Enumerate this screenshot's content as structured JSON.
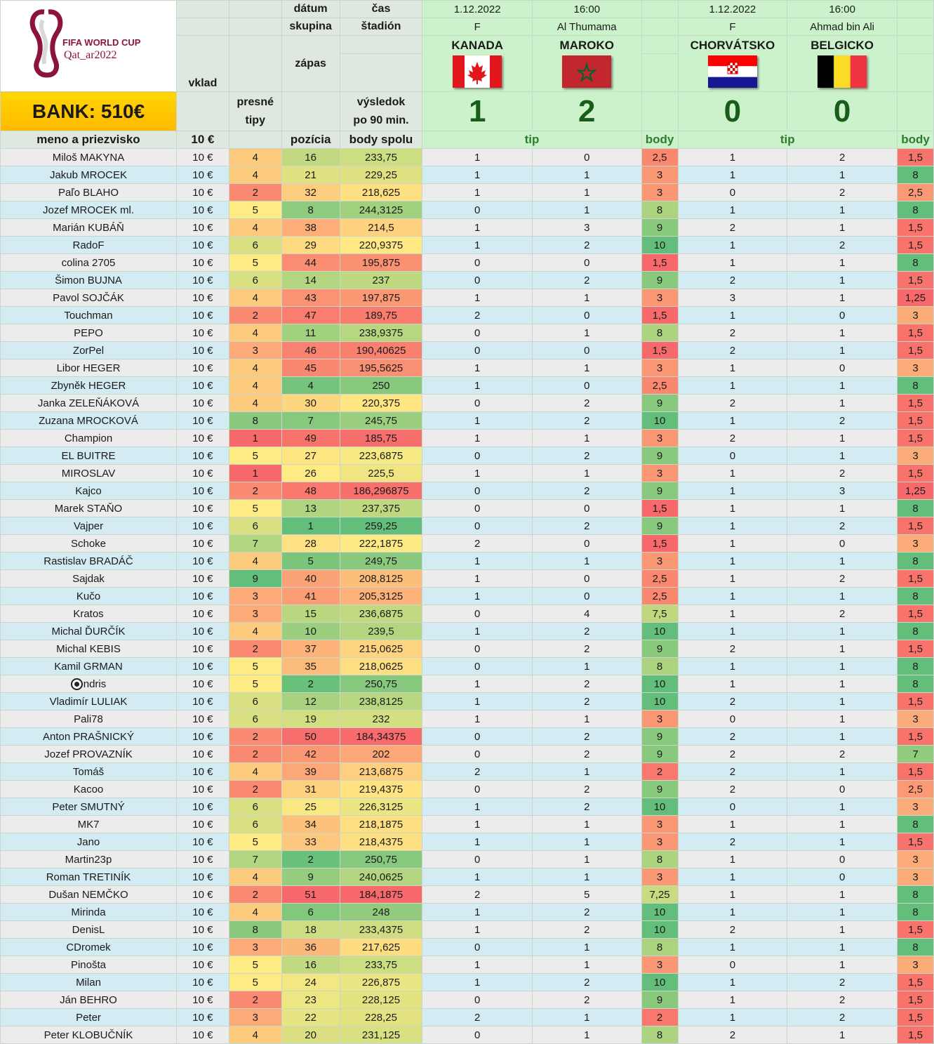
{
  "bank": "BANK: 510€",
  "logo_text": {
    "line1": "FIFA WORLD CUP",
    "line2": "Qat_ar2022"
  },
  "labels": {
    "datum": "dátum",
    "cas": "čas",
    "skupina": "skupina",
    "stadion": "štadión",
    "vklad": "vklad",
    "zapas": "zápas",
    "presne_tipy": [
      "presné",
      "tipy"
    ],
    "vysledok": [
      "výsledok",
      "po 90 min."
    ],
    "meno": "meno a priezvisko",
    "vklad_value": "10 €",
    "pozicia": "pozícia",
    "body_spolu": "body spolu",
    "tip": "tip",
    "body": "body"
  },
  "matches": [
    {
      "date": "1.12.2022",
      "time": "16:00",
      "group": "F",
      "stadium": "Al Thumama",
      "home": "KANADA",
      "away": "MAROKO",
      "home_flag": "canada-flag",
      "away_flag": "morocco-flag",
      "home_score": "1",
      "away_score": "2"
    },
    {
      "date": "1.12.2022",
      "time": "16:00",
      "group": "F",
      "stadium": "Ahmad bin Ali",
      "home": "CHORVÁTSKO",
      "away": "BELGICKO",
      "home_flag": "croatia-flag",
      "away_flag": "belgium-flag",
      "home_score": "0",
      "away_score": "0"
    }
  ],
  "players": [
    [
      "Miloš MAKYNA",
      "10 €",
      "4",
      "16",
      "233,75",
      "1",
      "0",
      "2,5",
      "1",
      "2",
      "1,5"
    ],
    [
      "Jakub MROCEK",
      "10 €",
      "4",
      "21",
      "229,25",
      "1",
      "1",
      "3",
      "1",
      "1",
      "8"
    ],
    [
      "Paľo BLAHO",
      "10 €",
      "2",
      "32",
      "218,625",
      "1",
      "1",
      "3",
      "0",
      "2",
      "2,5"
    ],
    [
      "Jozef MROCEK ml.",
      "10 €",
      "5",
      "8",
      "244,3125",
      "0",
      "1",
      "8",
      "1",
      "1",
      "8"
    ],
    [
      "Marián KUBÁŇ",
      "10 €",
      "4",
      "38",
      "214,5",
      "1",
      "3",
      "9",
      "2",
      "1",
      "1,5"
    ],
    [
      "RadoF",
      "10 €",
      "6",
      "29",
      "220,9375",
      "1",
      "2",
      "10",
      "1",
      "2",
      "1,5"
    ],
    [
      "colina 2705",
      "10 €",
      "5",
      "44",
      "195,875",
      "0",
      "0",
      "1,5",
      "1",
      "1",
      "8"
    ],
    [
      "Šimon BUJNA",
      "10 €",
      "6",
      "14",
      "237",
      "0",
      "2",
      "9",
      "2",
      "1",
      "1,5"
    ],
    [
      "Pavol SOJČÁK",
      "10 €",
      "4",
      "43",
      "197,875",
      "1",
      "1",
      "3",
      "3",
      "1",
      "1,25"
    ],
    [
      "Touchman",
      "10 €",
      "2",
      "47",
      "189,75",
      "2",
      "0",
      "1,5",
      "1",
      "0",
      "3"
    ],
    [
      "PEPO",
      "10 €",
      "4",
      "11",
      "238,9375",
      "0",
      "1",
      "8",
      "2",
      "1",
      "1,5"
    ],
    [
      "ZorPel",
      "10 €",
      "3",
      "46",
      "190,40625",
      "0",
      "0",
      "1,5",
      "2",
      "1",
      "1,5"
    ],
    [
      "Libor HEGER",
      "10 €",
      "4",
      "45",
      "195,5625",
      "1",
      "1",
      "3",
      "1",
      "0",
      "3"
    ],
    [
      "Zbyněk HEGER",
      "10 €",
      "4",
      "4",
      "250",
      "1",
      "0",
      "2,5",
      "1",
      "1",
      "8"
    ],
    [
      "Janka ZELEŇÁKOVÁ",
      "10 €",
      "4",
      "30",
      "220,375",
      "0",
      "2",
      "9",
      "2",
      "1",
      "1,5"
    ],
    [
      "Zuzana MROCKOVÁ",
      "10 €",
      "8",
      "7",
      "245,75",
      "1",
      "2",
      "10",
      "1",
      "2",
      "1,5"
    ],
    [
      "Champion",
      "10 €",
      "1",
      "49",
      "185,75",
      "1",
      "1",
      "3",
      "2",
      "1",
      "1,5"
    ],
    [
      "EL BUITRE",
      "10 €",
      "5",
      "27",
      "223,6875",
      "0",
      "2",
      "9",
      "0",
      "1",
      "3"
    ],
    [
      "MIROSLAV",
      "10 €",
      "1",
      "26",
      "225,5",
      "1",
      "1",
      "3",
      "1",
      "2",
      "1,5"
    ],
    [
      "Kajco",
      "10 €",
      "2",
      "48",
      "186,296875",
      "0",
      "2",
      "9",
      "1",
      "3",
      "1,25"
    ],
    [
      "Marek STAŇO",
      "10 €",
      "5",
      "13",
      "237,375",
      "0",
      "0",
      "1,5",
      "1",
      "1",
      "8"
    ],
    [
      "Vajper",
      "10 €",
      "6",
      "1",
      "259,25",
      "0",
      "2",
      "9",
      "1",
      "2",
      "1,5"
    ],
    [
      "Schoke",
      "10 €",
      "7",
      "28",
      "222,1875",
      "2",
      "0",
      "1,5",
      "1",
      "0",
      "3"
    ],
    [
      "Rastislav BRADÁČ",
      "10 €",
      "4",
      "5",
      "249,75",
      "1",
      "1",
      "3",
      "1",
      "1",
      "8"
    ],
    [
      "Sajdak",
      "10 €",
      "9",
      "40",
      "208,8125",
      "1",
      "0",
      "2,5",
      "1",
      "2",
      "1,5"
    ],
    [
      "Kučo",
      "10 €",
      "3",
      "41",
      "205,3125",
      "1",
      "0",
      "2,5",
      "1",
      "1",
      "8"
    ],
    [
      "Kratos",
      "10 €",
      "3",
      "15",
      "236,6875",
      "0",
      "4",
      "7,5",
      "1",
      "2",
      "1,5"
    ],
    [
      "Michal ĎURČÍK",
      "10 €",
      "4",
      "10",
      "239,5",
      "1",
      "2",
      "10",
      "1",
      "1",
      "8"
    ],
    [
      "Michal KEBIS",
      "10 €",
      "2",
      "37",
      "215,0625",
      "0",
      "2",
      "9",
      "2",
      "1",
      "1,5"
    ],
    [
      "Kamil GRMAN",
      "10 €",
      "5",
      "35",
      "218,0625",
      "0",
      "1",
      "8",
      "1",
      "1",
      "8"
    ],
    [
      "ndris",
      "10 €",
      "5",
      "2",
      "250,75",
      "1",
      "2",
      "10",
      "1",
      "1",
      "8"
    ],
    [
      "Vladimír LULIAK",
      "10 €",
      "6",
      "12",
      "238,8125",
      "1",
      "2",
      "10",
      "2",
      "1",
      "1,5"
    ],
    [
      "Pali78",
      "10 €",
      "6",
      "19",
      "232",
      "1",
      "1",
      "3",
      "0",
      "1",
      "3"
    ],
    [
      "Anton PRAŠNICKÝ",
      "10 €",
      "2",
      "50",
      "184,34375",
      "0",
      "2",
      "9",
      "2",
      "1",
      "1,5"
    ],
    [
      "Jozef PROVAZNÍK",
      "10 €",
      "2",
      "42",
      "202",
      "0",
      "2",
      "9",
      "2",
      "2",
      "7"
    ],
    [
      "Tomáš",
      "10 €",
      "4",
      "39",
      "213,6875",
      "2",
      "1",
      "2",
      "2",
      "1",
      "1,5"
    ],
    [
      "Kacoo",
      "10 €",
      "2",
      "31",
      "219,4375",
      "0",
      "2",
      "9",
      "2",
      "0",
      "2,5"
    ],
    [
      "Peter SMUTNÝ",
      "10 €",
      "6",
      "25",
      "226,3125",
      "1",
      "2",
      "10",
      "0",
      "1",
      "3"
    ],
    [
      "MK7",
      "10 €",
      "6",
      "34",
      "218,1875",
      "1",
      "1",
      "3",
      "1",
      "1",
      "8"
    ],
    [
      "Jano",
      "10 €",
      "5",
      "33",
      "218,4375",
      "1",
      "1",
      "3",
      "2",
      "1",
      "1,5"
    ],
    [
      "Martin23p",
      "10 €",
      "7",
      "2",
      "250,75",
      "0",
      "1",
      "8",
      "1",
      "0",
      "3"
    ],
    [
      "Roman TRETINÍK",
      "10 €",
      "4",
      "9",
      "240,0625",
      "1",
      "1",
      "3",
      "1",
      "0",
      "3"
    ],
    [
      "Dušan NEMČKO",
      "10 €",
      "2",
      "51",
      "184,1875",
      "2",
      "5",
      "7,25",
      "1",
      "1",
      "8"
    ],
    [
      "Mirinda",
      "10 €",
      "4",
      "6",
      "248",
      "1",
      "2",
      "10",
      "1",
      "1",
      "8"
    ],
    [
      "DenisL",
      "10 €",
      "8",
      "18",
      "233,4375",
      "1",
      "2",
      "10",
      "2",
      "1",
      "1,5"
    ],
    [
      "CDromek",
      "10 €",
      "3",
      "36",
      "217,625",
      "0",
      "1",
      "8",
      "1",
      "1",
      "8"
    ],
    [
      "Pinošta",
      "10 €",
      "5",
      "16",
      "233,75",
      "1",
      "1",
      "3",
      "0",
      "1",
      "3"
    ],
    [
      "Milan",
      "10 €",
      "5",
      "24",
      "226,875",
      "1",
      "2",
      "10",
      "1",
      "2",
      "1,5"
    ],
    [
      "Ján BEHRO",
      "10 €",
      "2",
      "23",
      "228,125",
      "0",
      "2",
      "9",
      "1",
      "2",
      "1,5"
    ],
    [
      "Peter",
      "10 €",
      "3",
      "22",
      "228,25",
      "2",
      "1",
      "2",
      "1",
      "2",
      "1,5"
    ],
    [
      "Peter KLOBUČNÍK",
      "10 €",
      "4",
      "20",
      "231,125",
      "0",
      "1",
      "8",
      "2",
      "1",
      "1,5"
    ]
  ]
}
